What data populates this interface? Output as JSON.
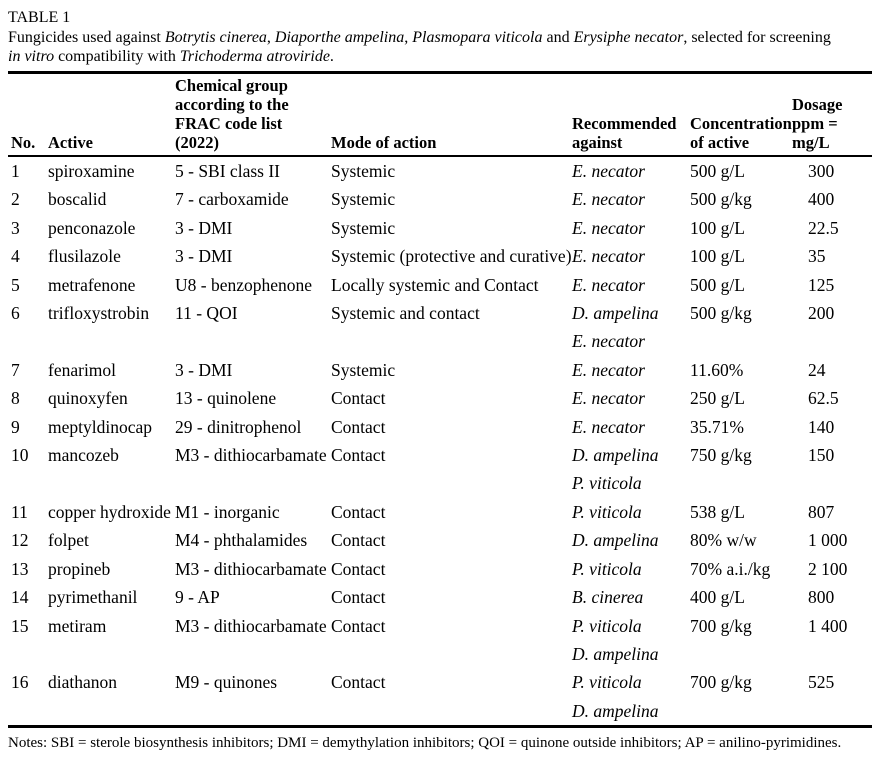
{
  "page": {
    "label": "TABLE 1",
    "caption_lines": [
      {
        "segments": [
          {
            "text": "Fungicides used against ",
            "italic": false
          },
          {
            "text": "Botrytis cinerea",
            "italic": true
          },
          {
            "text": ", ",
            "italic": false
          },
          {
            "text": "Diaporthe ampelina",
            "italic": true
          },
          {
            "text": ", ",
            "italic": false
          },
          {
            "text": "Plasmopara viticola",
            "italic": true
          },
          {
            "text": " and ",
            "italic": false
          },
          {
            "text": "Erysiphe necator",
            "italic": true
          },
          {
            "text": ", selected for screening",
            "italic": false
          }
        ]
      },
      {
        "segments": [
          {
            "text": "in vitro",
            "italic": true
          },
          {
            "text": " compatibility with ",
            "italic": false
          },
          {
            "text": "Trichoderma atroviride",
            "italic": true
          },
          {
            "text": ".",
            "italic": false
          }
        ]
      }
    ],
    "columns": [
      {
        "id": "no",
        "lines": [
          "No."
        ]
      },
      {
        "id": "active",
        "lines": [
          "Active"
        ]
      },
      {
        "id": "chemical-group",
        "lines": [
          "Chemical group",
          "according to the",
          "FRAC code list",
          "(2022)"
        ]
      },
      {
        "id": "mode-of-action",
        "lines": [
          "Mode of action"
        ]
      },
      {
        "id": "recommended-against",
        "lines": [
          "Recommended",
          "against"
        ]
      },
      {
        "id": "concentration",
        "lines": [
          "Concentration",
          "of active"
        ]
      },
      {
        "id": "dosage",
        "lines": [
          "Dosage",
          "ppm =",
          "mg/L"
        ]
      }
    ],
    "rows": [
      {
        "no": "1",
        "active": "spiroxamine",
        "chemical_group": "5 - SBI class II",
        "mode_of_action": "Systemic",
        "recommended_against": [
          "E. necator"
        ],
        "concentration": "500 g/L",
        "dosage": "300"
      },
      {
        "no": "2",
        "active": "boscalid",
        "chemical_group": "7 - carboxamide",
        "mode_of_action": "Systemic",
        "recommended_against": [
          "E. necator"
        ],
        "concentration": "500 g/kg",
        "dosage": "400"
      },
      {
        "no": "3",
        "active": "penconazole",
        "chemical_group": "3 - DMI",
        "mode_of_action": "Systemic",
        "recommended_against": [
          "E. necator"
        ],
        "concentration": "100 g/L",
        "dosage": "22.5"
      },
      {
        "no": "4",
        "active": "flusilazole",
        "chemical_group": "3 - DMI",
        "mode_of_action": "Systemic (protective and curative)",
        "recommended_against": [
          "E. necator"
        ],
        "concentration": "100 g/L",
        "dosage": "35"
      },
      {
        "no": "5",
        "active": "metrafenone",
        "chemical_group": "U8 - benzophenone",
        "mode_of_action": "Locally systemic and Contact",
        "recommended_against": [
          "E. necator"
        ],
        "concentration": "500 g/L",
        "dosage": "125"
      },
      {
        "no": "6",
        "active": "trifloxystrobin",
        "chemical_group": "11 - QOI",
        "mode_of_action": "Systemic and contact",
        "recommended_against": [
          "D. ampelina",
          "E. necator"
        ],
        "concentration": "500 g/kg",
        "dosage": "200"
      },
      {
        "no": "7",
        "active": "fenarimol",
        "chemical_group": "3 - DMI",
        "mode_of_action": "Systemic",
        "recommended_against": [
          "E. necator"
        ],
        "concentration": "11.60%",
        "dosage": "24"
      },
      {
        "no": "8",
        "active": "quinoxyfen",
        "chemical_group": "13 - quinolene",
        "mode_of_action": "Contact",
        "recommended_against": [
          "E. necator"
        ],
        "concentration": "250 g/L",
        "dosage": "62.5"
      },
      {
        "no": "9",
        "active": "meptyldinocap",
        "chemical_group": "29 - dinitrophenol",
        "mode_of_action": "Contact",
        "recommended_against": [
          "E. necator"
        ],
        "concentration": "35.71%",
        "dosage": "140"
      },
      {
        "no": "10",
        "active": "mancozeb",
        "chemical_group": "M3 - dithiocarbamate",
        "mode_of_action": "Contact",
        "recommended_against": [
          "D. ampelina",
          "P. viticola"
        ],
        "concentration": "750 g/kg",
        "dosage": "150"
      },
      {
        "no": "11",
        "active": "copper hydroxide",
        "chemical_group": "M1 - inorganic",
        "mode_of_action": "Contact",
        "recommended_against": [
          "P. viticola"
        ],
        "concentration": "538 g/L",
        "dosage": "807"
      },
      {
        "no": "12",
        "active": "folpet",
        "chemical_group": "M4 - phthalamides",
        "mode_of_action": "Contact",
        "recommended_against": [
          "D. ampelina"
        ],
        "concentration": "80% w/w",
        "dosage": "1 000"
      },
      {
        "no": "13",
        "active": "propineb",
        "chemical_group": "M3 - dithiocarbamate",
        "mode_of_action": "Contact",
        "recommended_against": [
          "P. viticola"
        ],
        "concentration": "70% a.i./kg",
        "dosage": "2 100"
      },
      {
        "no": "14",
        "active": "pyrimethanil",
        "chemical_group": "9 - AP",
        "mode_of_action": "Contact",
        "recommended_against": [
          "B. cinerea"
        ],
        "concentration": "400 g/L",
        "dosage": "800"
      },
      {
        "no": "15",
        "active": "metiram",
        "chemical_group": "M3 - dithiocarbamate",
        "mode_of_action": "Contact",
        "recommended_against": [
          "P. viticola",
          "D. ampelina"
        ],
        "concentration": "700 g/kg",
        "dosage": "1 400"
      },
      {
        "no": "16",
        "active": "diathanon",
        "chemical_group": "M9 - quinones",
        "mode_of_action": "Contact",
        "recommended_against": [
          "P. viticola",
          "D. ampelina"
        ],
        "concentration": "700 g/kg",
        "dosage": "525"
      }
    ],
    "notes": "Notes: SBI = sterole biosynthesis inhibitors; DMI = demythylation inhibitors; QOI = quinone outside inhibitors; AP = anilino-pyrimidines."
  }
}
